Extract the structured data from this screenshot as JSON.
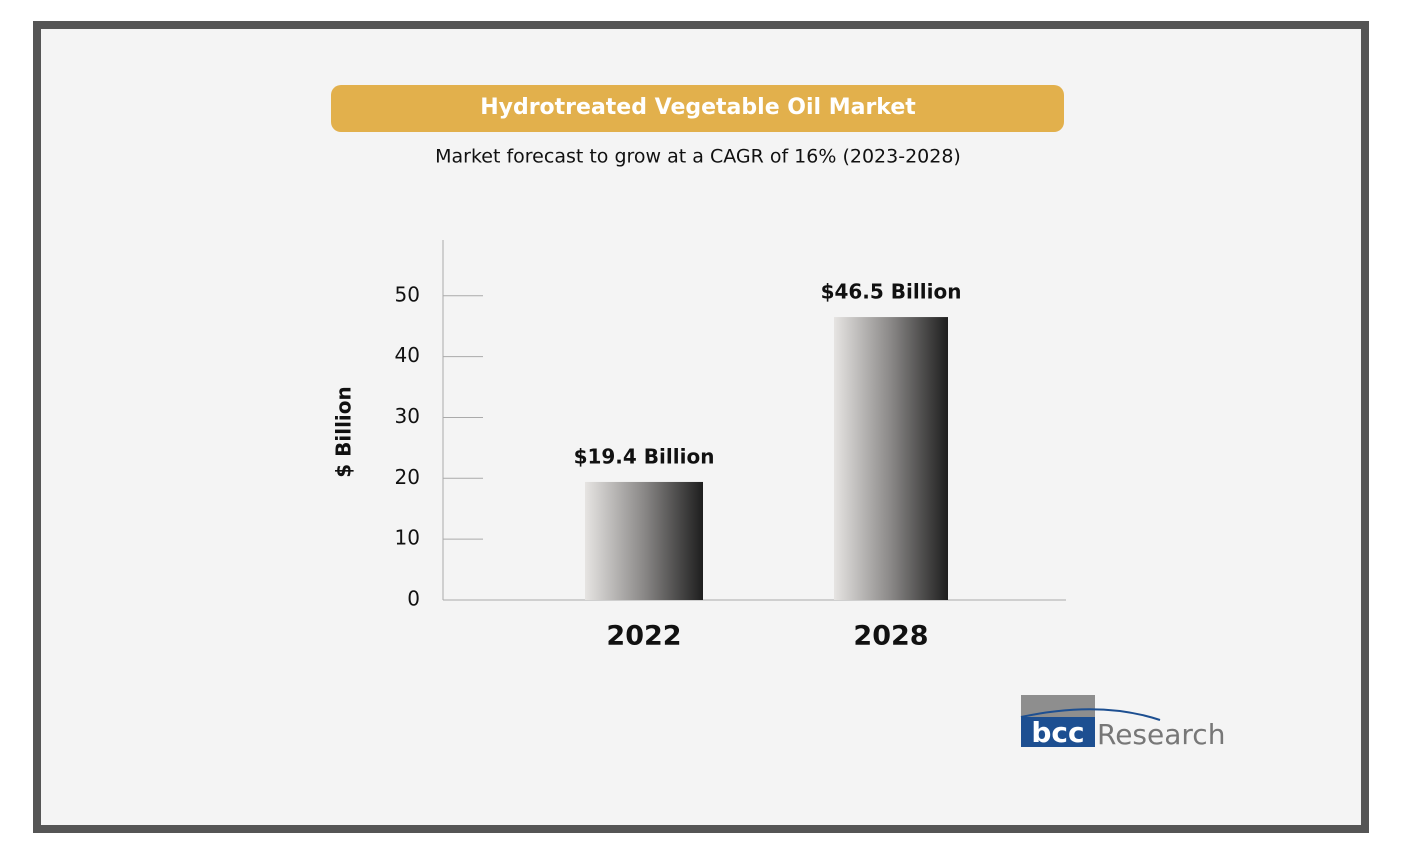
{
  "chart_data": {
    "type": "bar",
    "title": "Hydrotreated Vegetable Oil Market",
    "subtitle": "Market forecast to grow at a CAGR of 16% (2023-2028)",
    "y_label": "$ Billion",
    "categories": [
      "2022",
      "2028"
    ],
    "values": [
      19.4,
      46.5
    ],
    "value_labels": [
      "$19.4 Billion",
      "$46.5 Billion"
    ],
    "ylim": [
      0,
      59
    ],
    "yticks": [
      0,
      10,
      20,
      30,
      40,
      50
    ],
    "grid": false
  },
  "logo": {
    "mark": "bcc",
    "text": "Research"
  }
}
